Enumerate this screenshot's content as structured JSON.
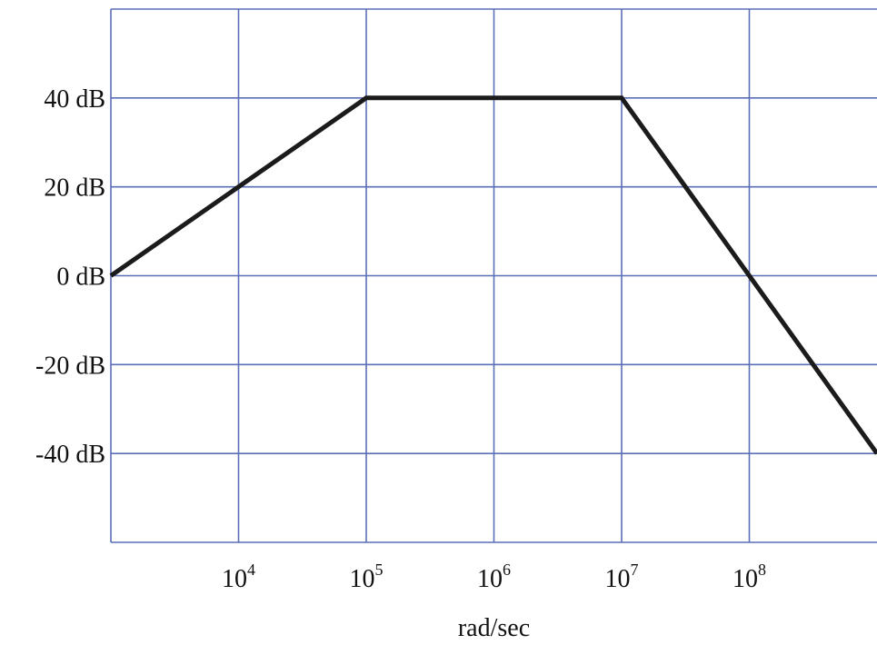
{
  "chart_data": {
    "type": "line",
    "title": "",
    "xlabel": "rad/sec",
    "ylabel": "",
    "x_scale": "log",
    "xlim": [
      1000,
      1000000000
    ],
    "ylim": [
      -60,
      60
    ],
    "grid": true,
    "x_ticks": [
      {
        "value": 10000,
        "base": "10",
        "exp": "4"
      },
      {
        "value": 100000,
        "base": "10",
        "exp": "5"
      },
      {
        "value": 1000000,
        "base": "10",
        "exp": "6"
      },
      {
        "value": 10000000,
        "base": "10",
        "exp": "7"
      },
      {
        "value": 100000000,
        "base": "10",
        "exp": "8"
      }
    ],
    "y_ticks": [
      {
        "value": 40,
        "label": "40 dB"
      },
      {
        "value": 20,
        "label": "20 dB"
      },
      {
        "value": 0,
        "label": "0 dB"
      },
      {
        "value": -20,
        "label": "-20 dB"
      },
      {
        "value": -40,
        "label": "-40 dB"
      }
    ],
    "series": [
      {
        "x": [
          1000,
          100000,
          10000000,
          1000000000
        ],
        "y": [
          0,
          40,
          40,
          -40
        ]
      }
    ],
    "colors": {
      "grid": "#5b6eb8",
      "line": "#1b1b1b",
      "text": "#111111"
    }
  }
}
